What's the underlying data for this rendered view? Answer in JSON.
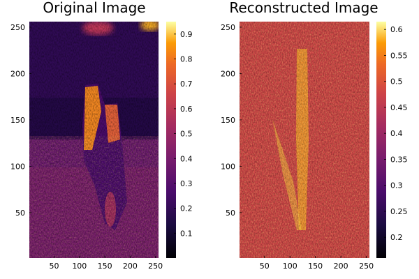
{
  "chart_data": [
    {
      "type": "heatmap",
      "title": "Original Image",
      "colormap": "inferno",
      "x_ticks": [
        50,
        100,
        150,
        200,
        250
      ],
      "y_ticks": [
        50,
        100,
        150,
        200,
        250
      ],
      "xlim": [
        1,
        256
      ],
      "ylim": [
        1,
        256
      ],
      "colorbar_ticks": [
        0.1,
        0.2,
        0.3,
        0.4,
        0.5,
        0.6,
        0.7,
        0.8,
        0.9
      ],
      "colorbar_range": [
        0.0,
        0.95
      ]
    },
    {
      "type": "heatmap",
      "title": "Reconstructed Image",
      "colormap": "inferno",
      "x_ticks": [
        50,
        100,
        150,
        200,
        250
      ],
      "y_ticks": [
        50,
        100,
        150,
        200,
        250
      ],
      "xlim": [
        1,
        256
      ],
      "ylim": [
        1,
        256
      ],
      "colorbar_ticks": [
        0.2,
        0.25,
        0.3,
        0.35,
        0.4,
        0.45,
        0.5,
        0.55,
        0.6
      ],
      "colorbar_range": [
        0.16,
        0.615
      ]
    }
  ]
}
